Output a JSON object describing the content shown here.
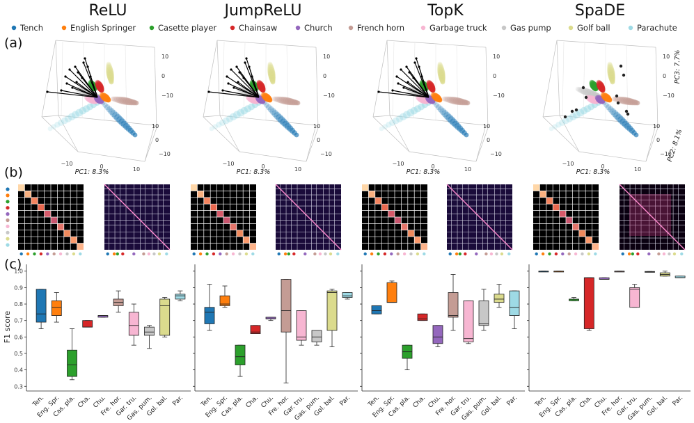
{
  "titles": [
    "ReLU",
    "JumpReLU",
    "TopK",
    "SpaDE"
  ],
  "panels": [
    "(a)",
    "(b)",
    "(c)"
  ],
  "classes": [
    {
      "name": "Tench",
      "short": "Ten.",
      "color": "#1f77b4"
    },
    {
      "name": "English Springer",
      "short": "Eng. Spr.",
      "color": "#ff7f0e"
    },
    {
      "name": "Casette player",
      "short": "Cas. pla.",
      "color": "#2ca02c"
    },
    {
      "name": "Chainsaw",
      "short": "Cha.",
      "color": "#d62728"
    },
    {
      "name": "Church",
      "short": "Chu.",
      "color": "#9467bd"
    },
    {
      "name": "French horn",
      "short": "Fre. hor.",
      "color": "#c49c94"
    },
    {
      "name": "Garbage truck",
      "short": "Gar. tru.",
      "color": "#f7b6d2"
    },
    {
      "name": "Gas pump",
      "short": "Gas. pum.",
      "color": "#c7c7c7"
    },
    {
      "name": "Golf ball",
      "short": "Gol. bal.",
      "color": "#dbdb8d"
    },
    {
      "name": "Parachute",
      "short": "Par.",
      "color": "#9edae5"
    }
  ],
  "pca": {
    "pc1_label": "PC1: 8.3%",
    "pc2_label": "PC2: 8.1%",
    "pc3_label": "PC3: 7.7%",
    "x_ticks": [
      "−10",
      "0",
      "10"
    ],
    "y_ticks": [
      "10",
      "0",
      "−10"
    ],
    "z_ticks": [
      "10",
      "0",
      "−10"
    ]
  },
  "chart_data": {
    "type": "box",
    "title": "",
    "ylabel": "F1 score",
    "ylim": [
      0.28,
      1.02
    ],
    "yticks": [
      "0.3",
      "0.4",
      "0.5",
      "0.6",
      "0.7",
      "0.8",
      "0.9",
      "1.0"
    ],
    "categories": [
      "Ten.",
      "Eng. Spr.",
      "Cas. pla.",
      "Cha.",
      "Chu.",
      "Fre. hor.",
      "Gar. tru.",
      "Gas. pum.",
      "Gol. bal.",
      "Par."
    ],
    "series": [
      {
        "name": "ReLU",
        "boxes": [
          [
            0.65,
            0.69,
            0.74,
            0.89,
            0.89
          ],
          [
            0.69,
            0.73,
            0.78,
            0.82,
            0.87
          ],
          [
            0.34,
            0.36,
            0.43,
            0.52,
            0.65
          ],
          [
            0.66,
            0.66,
            0.66,
            0.7,
            0.7
          ],
          [
            0.72,
            0.72,
            0.73,
            0.73,
            0.73
          ],
          [
            0.75,
            0.79,
            0.81,
            0.83,
            0.88
          ],
          [
            0.55,
            0.61,
            0.67,
            0.75,
            0.8
          ],
          [
            0.53,
            0.61,
            0.63,
            0.66,
            0.67
          ],
          [
            0.6,
            0.61,
            0.79,
            0.83,
            0.84
          ],
          [
            0.82,
            0.83,
            0.85,
            0.86,
            0.88
          ]
        ]
      },
      {
        "name": "JumpReLU",
        "boxes": [
          [
            0.64,
            0.68,
            0.75,
            0.78,
            0.92
          ],
          [
            0.78,
            0.79,
            0.8,
            0.85,
            0.91
          ],
          [
            0.36,
            0.43,
            0.48,
            0.55,
            0.55
          ],
          [
            0.62,
            0.62,
            0.63,
            0.67,
            0.67
          ],
          [
            0.7,
            0.71,
            0.71,
            0.72,
            0.72
          ],
          [
            0.32,
            0.63,
            0.76,
            0.95,
            0.95
          ],
          [
            0.55,
            0.58,
            0.6,
            0.76,
            0.76
          ],
          [
            0.55,
            0.57,
            0.6,
            0.64,
            0.64
          ],
          [
            0.54,
            0.64,
            0.87,
            0.88,
            0.89
          ],
          [
            0.83,
            0.84,
            0.85,
            0.87,
            0.87
          ]
        ]
      },
      {
        "name": "TopK",
        "boxes": [
          [
            0.74,
            0.74,
            0.76,
            0.79,
            0.79
          ],
          [
            0.81,
            0.81,
            0.81,
            0.93,
            0.94
          ],
          [
            0.4,
            0.47,
            0.51,
            0.55,
            0.55
          ],
          [
            0.7,
            0.7,
            0.71,
            0.74,
            0.74
          ],
          [
            0.54,
            0.56,
            0.6,
            0.67,
            0.67
          ],
          [
            0.64,
            0.72,
            0.73,
            0.87,
            0.98
          ],
          [
            0.56,
            0.57,
            0.59,
            0.82,
            0.82
          ],
          [
            0.64,
            0.67,
            0.68,
            0.82,
            0.89
          ],
          [
            0.78,
            0.81,
            0.83,
            0.86,
            0.92
          ],
          [
            0.65,
            0.73,
            0.78,
            0.88,
            0.88
          ]
        ]
      },
      {
        "name": "SpaDE",
        "boxes": [
          [
            1.0,
            1.0,
            1.0,
            1.0,
            1.0
          ],
          [
            1.0,
            1.0,
            1.0,
            1.0,
            1.0
          ],
          [
            0.82,
            0.82,
            0.83,
            0.83,
            0.84
          ],
          [
            0.64,
            0.65,
            0.96,
            0.96,
            0.96
          ],
          [
            0.95,
            0.95,
            0.95,
            0.96,
            0.96
          ],
          [
            1.0,
            1.0,
            1.0,
            1.0,
            1.0
          ],
          [
            0.78,
            0.78,
            0.89,
            0.9,
            0.92
          ],
          [
            0.995,
            0.995,
            0.995,
            0.998,
            0.998
          ],
          [
            0.97,
            0.97,
            0.98,
            0.99,
            1.0
          ],
          [
            0.96,
            0.96,
            0.96,
            0.97,
            0.97
          ]
        ]
      }
    ]
  }
}
